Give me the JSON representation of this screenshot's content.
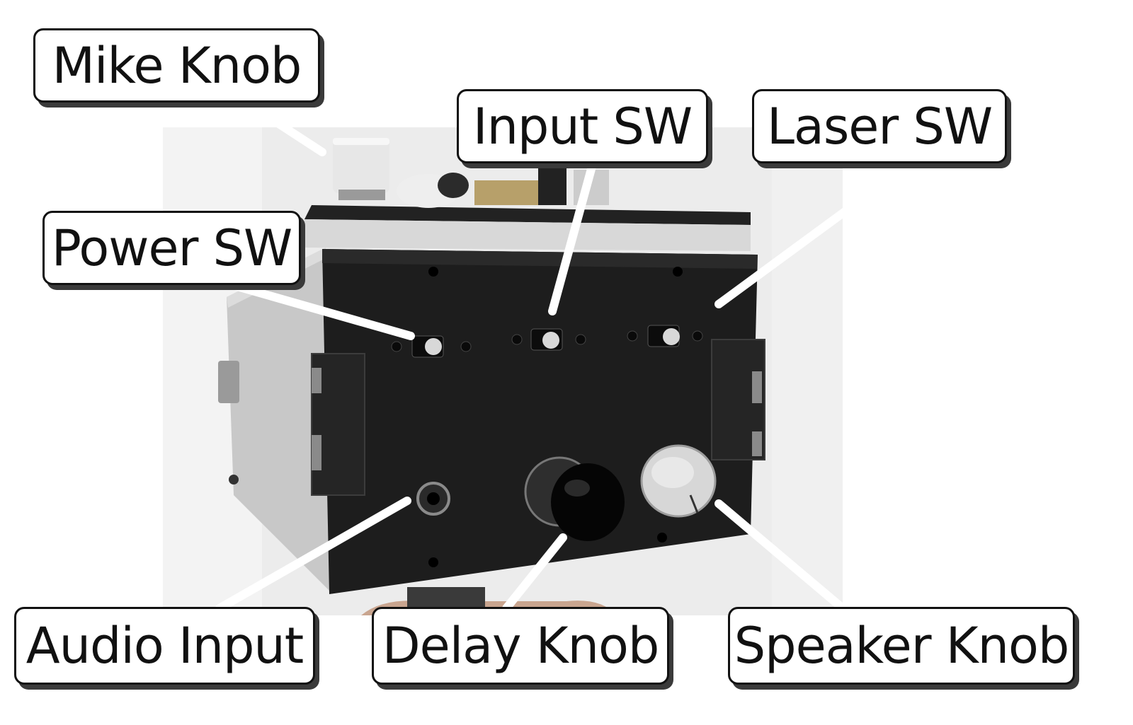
{
  "labels": {
    "mike_knob": "Mike Knob",
    "input_sw": "Input SW",
    "laser_sw": "Laser SW",
    "power_sw": "Power SW",
    "audio_input": "Audio Input",
    "delay_knob": "Delay Knob",
    "speaker_knob": "Speaker Knob"
  },
  "colors": {
    "panel": "#1d1d1d",
    "device_top": "#d8d8d8",
    "background": "#ffffff",
    "label_border": "#111111",
    "label_shadow": "#3a3a3a",
    "leader_line": "#ffffff"
  }
}
